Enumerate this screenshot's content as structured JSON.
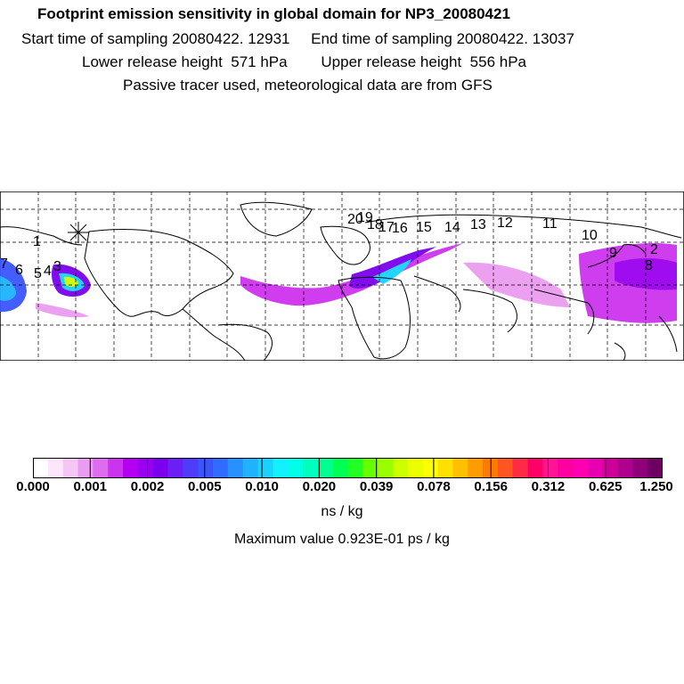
{
  "header": {
    "title": "Footprint emission sensitivity in global domain for NP3_20080421",
    "start_time": "Start time of sampling 20080422. 12931",
    "end_time": "End time of sampling 20080422. 13037",
    "lower_release": "Lower release height  571 hPa",
    "upper_release": "Upper release height  556 hPa",
    "tracer_note": "Passive tracer used, meteorological data are from GFS"
  },
  "map": {
    "trajectory_labels": [
      "20",
      "19",
      "18",
      "17",
      "16",
      "15",
      "14",
      "13",
      "12",
      "11",
      "10",
      "9",
      "8",
      "7",
      "6",
      "5",
      "4",
      "3",
      "2",
      "1"
    ],
    "release_marker": "star"
  },
  "colorbar": {
    "ticks": [
      "0.000",
      "0.001",
      "0.002",
      "0.005",
      "0.010",
      "0.020",
      "0.039",
      "0.078",
      "0.156",
      "0.312",
      "0.625",
      "1.250"
    ],
    "colors": [
      "#ffffff",
      "#fbe6fb",
      "#f4c6f4",
      "#ea9cf0",
      "#dd6cef",
      "#cc33ee",
      "#b400f0",
      "#9a00ef",
      "#7b00ee",
      "#6a1ff5",
      "#4f3cf8",
      "#3a55ff",
      "#2f6cff",
      "#2890ff",
      "#1fb2ff",
      "#19d2ff",
      "#13f0ff",
      "#00ffe8",
      "#00ffbf",
      "#00ff90",
      "#00ff55",
      "#22ff22",
      "#66ff00",
      "#99ff00",
      "#ccff00",
      "#eaff00",
      "#ffff00",
      "#ffe100",
      "#ffc000",
      "#ff9c00",
      "#ff7a00",
      "#ff5522",
      "#ff2a44",
      "#ff0066",
      "#ff1493",
      "#ff00a0",
      "#ff00b0",
      "#e800b0",
      "#cc0099",
      "#b00090",
      "#90007a",
      "#6d0060"
    ],
    "units": "ns / kg",
    "max_value": "Maximum value  0.923E-01 ps / kg"
  }
}
